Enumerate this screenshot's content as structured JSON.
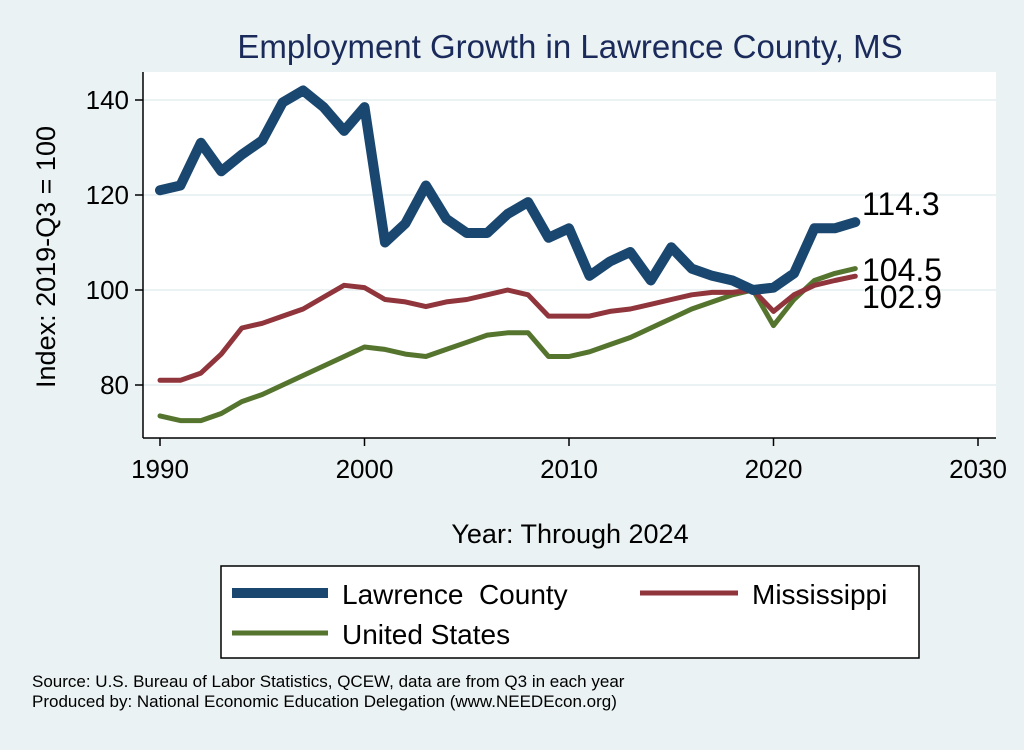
{
  "chart_data": {
    "type": "line",
    "title": "Employment Growth in Lawrence County, MS",
    "xlabel": "Year: Through 2024",
    "ylabel": "Index: 2019-Q3 = 100",
    "xlim": [
      1990,
      2030
    ],
    "ylim": [
      70,
      145
    ],
    "x_ticks": [
      1990,
      2000,
      2010,
      2020,
      2030
    ],
    "y_ticks": [
      80,
      100,
      120,
      140
    ],
    "grid": true,
    "legend_position": "bottom",
    "x": [
      1990,
      1991,
      1992,
      1993,
      1994,
      1995,
      1996,
      1997,
      1998,
      1999,
      2000,
      2001,
      2002,
      2003,
      2004,
      2005,
      2006,
      2007,
      2008,
      2009,
      2010,
      2011,
      2012,
      2013,
      2014,
      2015,
      2016,
      2017,
      2018,
      2019,
      2020,
      2021,
      2022,
      2023,
      2024
    ],
    "series": [
      {
        "name": "Lawrence  County",
        "color": "#1a476f",
        "values": [
          121,
          122,
          131,
          125,
          128.5,
          131.5,
          139.5,
          142,
          138.5,
          133.5,
          138.5,
          110,
          114,
          122,
          115,
          112,
          112,
          116,
          118.5,
          111,
          113,
          103,
          106,
          108,
          102,
          109,
          104.5,
          103,
          102,
          100,
          100.5,
          103.5,
          113,
          113,
          114.3
        ],
        "end_label": "114.3"
      },
      {
        "name": "Mississippi",
        "color": "#90353b",
        "values": [
          81,
          81,
          82.5,
          86.5,
          92,
          93,
          94.5,
          96,
          98.5,
          101,
          100.5,
          98,
          97.5,
          96.5,
          97.5,
          98,
          99,
          100,
          99,
          94.5,
          94.5,
          94.5,
          95.5,
          96,
          97,
          98,
          99,
          99.5,
          99.5,
          100,
          95.5,
          99,
          101,
          102,
          102.9
        ],
        "end_label": "102.9"
      },
      {
        "name": "United States",
        "color": "#55752f",
        "values": [
          73.5,
          72.5,
          72.5,
          74,
          76.5,
          78,
          80,
          82,
          84,
          86,
          88,
          87.5,
          86.5,
          86,
          87.5,
          89,
          90.5,
          91,
          91,
          86,
          86,
          87,
          88.5,
          90,
          92,
          94,
          96,
          97.5,
          99,
          100,
          92.5,
          98,
          102,
          103.5,
          104.5
        ],
        "end_label": "104.5"
      }
    ]
  },
  "source_lines": [
    "Source: U.S. Bureau of Labor Statistics, QCEW, data are from Q3 in each year",
    "Produced by: National Economic Education Delegation (www.NEEDEcon.org)"
  ]
}
